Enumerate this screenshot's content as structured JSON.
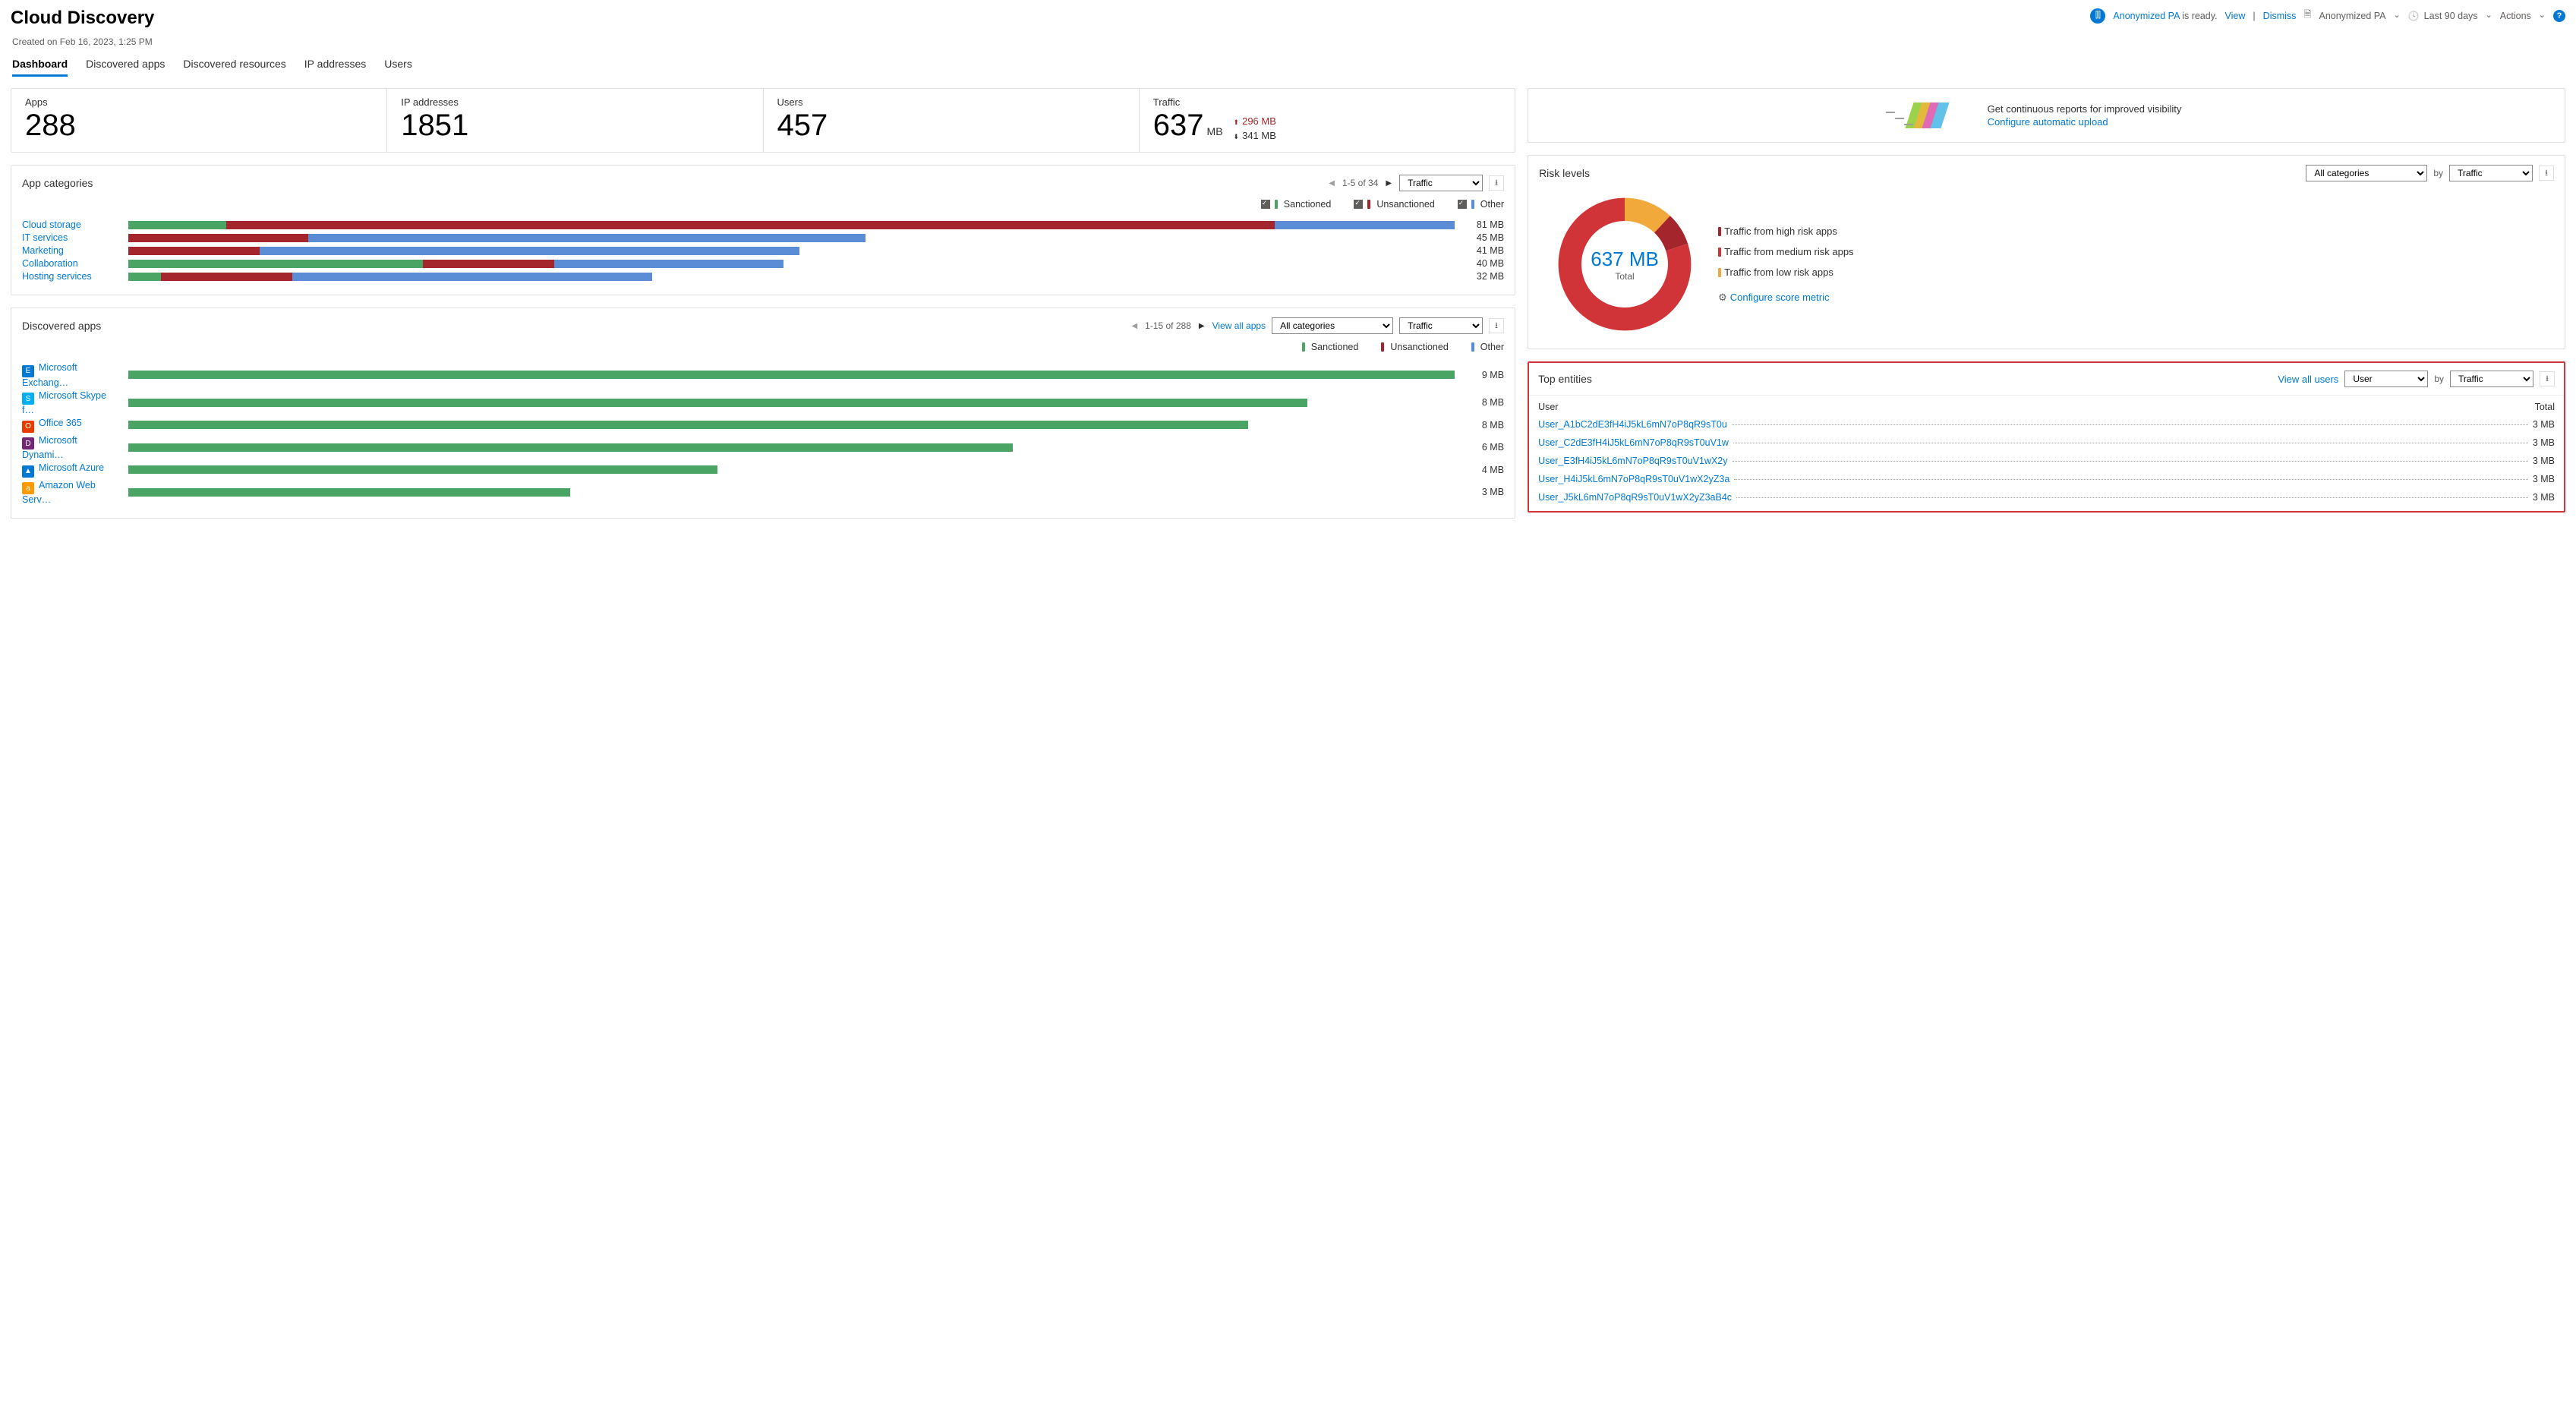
{
  "colors": {
    "sanctioned": "#4aa564",
    "unsanctioned": "#a4262c",
    "other": "#5b8dd6",
    "high": "#d13438",
    "medium": "#e3008c",
    "low": "#f2a93b",
    "accent": "#0078d4"
  },
  "header": {
    "title": "Cloud Discovery",
    "ready_subject": "Anonymized PA",
    "ready_suffix": " is ready.",
    "view": "View",
    "dismiss": "Dismiss",
    "report_selector": "Anonymized PA",
    "timeframe": "Last 90 days",
    "actions": "Actions"
  },
  "created": "Created on Feb 16, 2023, 1:25 PM",
  "tabs": [
    "Dashboard",
    "Discovered apps",
    "Discovered resources",
    "IP addresses",
    "Users"
  ],
  "active_tab": 0,
  "stats": {
    "apps": {
      "label": "Apps",
      "value": "288"
    },
    "ips": {
      "label": "IP addresses",
      "value": "1851"
    },
    "users": {
      "label": "Users",
      "value": "457"
    },
    "traffic": {
      "label": "Traffic",
      "value": "637",
      "unit": "MB",
      "up": "296 MB",
      "down": "341 MB"
    }
  },
  "promo": {
    "text": "Get continuous reports for improved visibility",
    "link": "Configure automatic upload",
    "bars": [
      "#9bd24b",
      "#e3b93b",
      "#e06ab5",
      "#61c1e8"
    ]
  },
  "app_categories": {
    "title": "App categories",
    "pager": "1-5 of 34",
    "sort_by": "Traffic",
    "legend": [
      {
        "label": "Sanctioned",
        "color": "#4aa564"
      },
      {
        "label": "Unsanctioned",
        "color": "#a4262c"
      },
      {
        "label": "Other",
        "color": "#5b8dd6"
      }
    ],
    "max": 81,
    "rows": [
      {
        "label": "Cloud storage",
        "value": "81 MB",
        "total": 81,
        "segs": [
          {
            "c": "#4aa564",
            "v": 6
          },
          {
            "c": "#a4262c",
            "v": 64
          },
          {
            "c": "#5b8dd6",
            "v": 11
          }
        ]
      },
      {
        "label": "IT services",
        "value": "45 MB",
        "total": 45,
        "segs": [
          {
            "c": "#a4262c",
            "v": 11
          },
          {
            "c": "#5b8dd6",
            "v": 34
          }
        ]
      },
      {
        "label": "Marketing",
        "value": "41 MB",
        "total": 41,
        "segs": [
          {
            "c": "#a4262c",
            "v": 8
          },
          {
            "c": "#5b8dd6",
            "v": 33
          }
        ]
      },
      {
        "label": "Collaboration",
        "value": "40 MB",
        "total": 40,
        "segs": [
          {
            "c": "#4aa564",
            "v": 18
          },
          {
            "c": "#a4262c",
            "v": 8
          },
          {
            "c": "#5b8dd6",
            "v": 14
          }
        ]
      },
      {
        "label": "Hosting services",
        "value": "32 MB",
        "total": 32,
        "segs": [
          {
            "c": "#4aa564",
            "v": 2
          },
          {
            "c": "#a4262c",
            "v": 8
          },
          {
            "c": "#5b8dd6",
            "v": 22
          }
        ]
      }
    ]
  },
  "risk": {
    "title": "Risk levels",
    "all_categories": "All categories",
    "by": "by",
    "sort_by": "Traffic",
    "center_value": "637 MB",
    "center_label": "Total",
    "segments": [
      {
        "color": "#f2a93b",
        "pct": 12
      },
      {
        "color": "#a4262c",
        "pct": 8
      },
      {
        "color": "#d13438",
        "pct": 80
      }
    ],
    "legend": [
      {
        "color": "#a4262c",
        "label": "Traffic from high risk apps"
      },
      {
        "color": "#d13438",
        "label": "Traffic from medium risk apps"
      },
      {
        "color": "#f2a93b",
        "label": "Traffic from low risk apps"
      }
    ],
    "configure": "Configure score metric"
  },
  "discovered": {
    "title": "Discovered apps",
    "pager": "1-15 of 288",
    "view_all": "View all apps",
    "cat_filter": "All categories",
    "sort_by": "Traffic",
    "legend": [
      {
        "label": "Sanctioned",
        "color": "#4aa564"
      },
      {
        "label": "Unsanctioned",
        "color": "#a4262c"
      },
      {
        "label": "Other",
        "color": "#5b8dd6"
      }
    ],
    "max": 9,
    "rows": [
      {
        "icon_bg": "#0078d4",
        "icon": "E",
        "label": "Microsoft Exchang…",
        "value": "9 MB",
        "total": 9,
        "segs": [
          {
            "c": "#4aa564",
            "v": 9
          }
        ]
      },
      {
        "icon_bg": "#00aff0",
        "icon": "S",
        "label": "Microsoft Skype f…",
        "value": "8 MB",
        "total": 8,
        "segs": [
          {
            "c": "#4aa564",
            "v": 8
          }
        ]
      },
      {
        "icon_bg": "#eb3c00",
        "icon": "O",
        "label": "Office 365",
        "value": "8 MB",
        "total": 7.6,
        "segs": [
          {
            "c": "#4aa564",
            "v": 7.6
          }
        ]
      },
      {
        "icon_bg": "#742774",
        "icon": "D",
        "label": "Microsoft Dynami…",
        "value": "6 MB",
        "total": 6,
        "segs": [
          {
            "c": "#4aa564",
            "v": 6
          }
        ]
      },
      {
        "icon_bg": "#0078d4",
        "icon": "▲",
        "label": "Microsoft Azure",
        "value": "4 MB",
        "total": 4,
        "segs": [
          {
            "c": "#4aa564",
            "v": 4
          }
        ]
      },
      {
        "icon_bg": "#ff9900",
        "icon": "a",
        "label": "Amazon Web Serv…",
        "value": "3 MB",
        "total": 3,
        "segs": [
          {
            "c": "#4aa564",
            "v": 3
          }
        ]
      }
    ]
  },
  "entities": {
    "title": "Top entities",
    "view_all": "View all users",
    "type_filter": "User",
    "by": "by",
    "sort_by": "Traffic",
    "col_user": "User",
    "col_total": "Total",
    "rows": [
      {
        "user": "User_A1bC2dE3fH4iJ5kL6mN7oP8qR9sT0u",
        "value": "3 MB"
      },
      {
        "user": "User_C2dE3fH4iJ5kL6mN7oP8qR9sT0uV1w",
        "value": "3 MB"
      },
      {
        "user": "User_E3fH4iJ5kL6mN7oP8qR9sT0uV1wX2y",
        "value": "3 MB"
      },
      {
        "user": "User_H4iJ5kL6mN7oP8qR9sT0uV1wX2yZ3a",
        "value": "3 MB"
      },
      {
        "user": "User_J5kL6mN7oP8qR9sT0uV1wX2yZ3aB4c",
        "value": "3 MB"
      }
    ]
  }
}
